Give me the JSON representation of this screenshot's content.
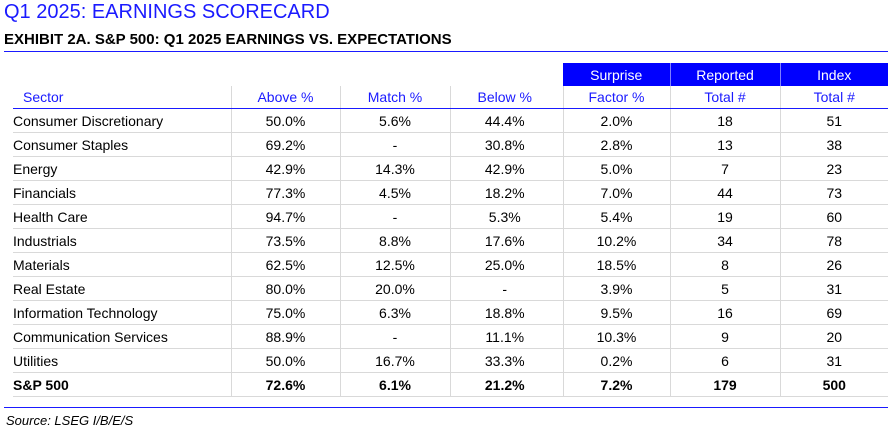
{
  "title": "Q1 2025: EARNINGS SCORECARD",
  "subtitle": "EXHIBIT 2A.  S&P 500: Q1 2025 EARNINGS VS. EXPECTATIONS",
  "source": "Source: LSEG I/B/E/S",
  "group_headers": {
    "surprise": "Surprise",
    "reported": "Reported",
    "index": "Index"
  },
  "colors": {
    "accent": "#1a1aff",
    "header_fill": "#0000ff",
    "gridline": "#d9d9d9"
  },
  "columns": [
    "Sector",
    "Above %",
    "Match %",
    "Below %",
    "Factor %",
    "Total #",
    "Total #"
  ],
  "rows": [
    [
      "Consumer Discretionary",
      "50.0%",
      "5.6%",
      "44.4%",
      "2.0%",
      "18",
      "51"
    ],
    [
      "Consumer Staples",
      "69.2%",
      "-",
      "30.8%",
      "2.8%",
      "13",
      "38"
    ],
    [
      "Energy",
      "42.9%",
      "14.3%",
      "42.9%",
      "5.0%",
      "7",
      "23"
    ],
    [
      "Financials",
      "77.3%",
      "4.5%",
      "18.2%",
      "7.0%",
      "44",
      "73"
    ],
    [
      "Health Care",
      "94.7%",
      "-",
      "5.3%",
      "5.4%",
      "19",
      "60"
    ],
    [
      "Industrials",
      "73.5%",
      "8.8%",
      "17.6%",
      "10.2%",
      "34",
      "78"
    ],
    [
      "Materials",
      "62.5%",
      "12.5%",
      "25.0%",
      "18.5%",
      "8",
      "26"
    ],
    [
      "Real Estate",
      "80.0%",
      "20.0%",
      "-",
      "3.9%",
      "5",
      "31"
    ],
    [
      "Information Technology",
      "75.0%",
      "6.3%",
      "18.8%",
      "9.5%",
      "16",
      "69"
    ],
    [
      "Communication Services",
      "88.9%",
      "-",
      "11.1%",
      "10.3%",
      "9",
      "20"
    ],
    [
      "Utilities",
      "50.0%",
      "16.7%",
      "33.3%",
      "0.2%",
      "6",
      "31"
    ]
  ],
  "total_row": [
    "S&P 500",
    "72.6%",
    "6.1%",
    "21.2%",
    "7.2%",
    "179",
    "500"
  ]
}
